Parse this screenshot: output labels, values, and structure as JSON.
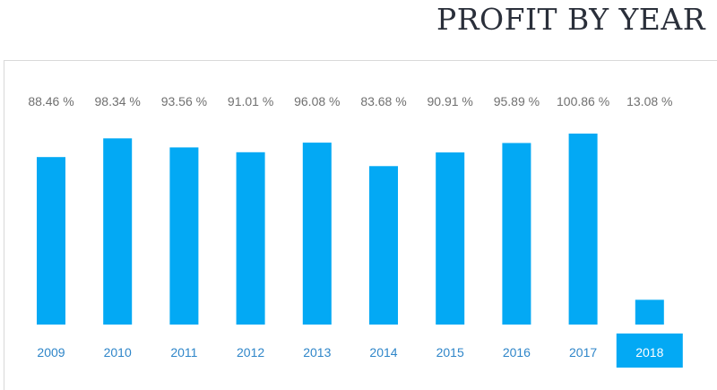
{
  "header": {
    "title": "PROFIT BY YEAR"
  },
  "colors": {
    "bar": "#03a9f4",
    "value_label": "#707070",
    "year_label": "#2f86c9",
    "selected_year_bg": "#03a9f4",
    "selected_year_text": "#ffffff",
    "title": "#2a2f3a"
  },
  "chart_data": {
    "type": "bar",
    "title": "PROFIT BY YEAR",
    "xlabel": "",
    "ylabel": "",
    "ylim": [
      0,
      100.86
    ],
    "grid": false,
    "selected_category": "2018",
    "categories": [
      "2009",
      "2010",
      "2011",
      "2012",
      "2013",
      "2014",
      "2015",
      "2016",
      "2017",
      "2018"
    ],
    "values": [
      88.46,
      98.34,
      93.56,
      91.01,
      96.08,
      83.68,
      90.91,
      95.89,
      100.86,
      13.08
    ],
    "value_labels": [
      "88.46 %",
      "98.34 %",
      "93.56 %",
      "91.01 %",
      "96.08 %",
      "83.68 %",
      "90.91 %",
      "95.89 %",
      "100.86 %",
      "13.08 %"
    ]
  }
}
